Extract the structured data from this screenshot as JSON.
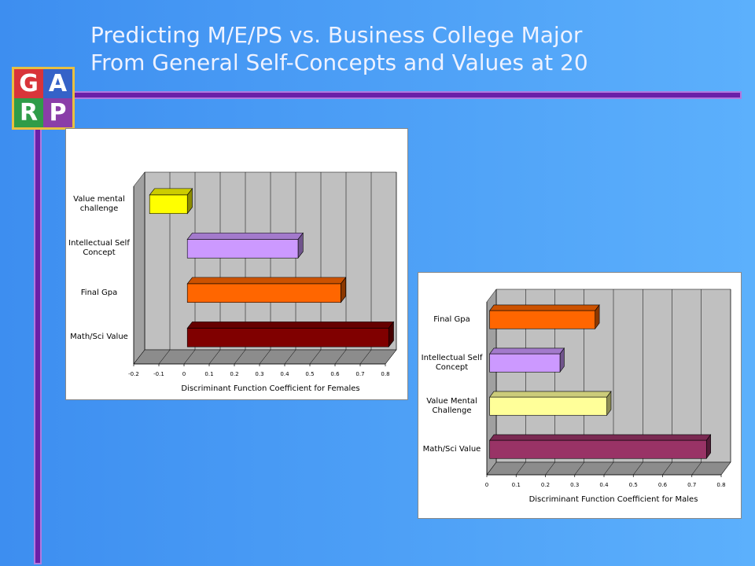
{
  "title": [
    "Predicting M/E/PS vs. Business College Major",
    "From General Self-Concepts and Values at 20"
  ],
  "logo": [
    "G",
    "A",
    "R",
    "P"
  ],
  "chart_data": [
    {
      "type": "bar",
      "orientation": "horizontal",
      "categories": [
        "Value mental challenge",
        "Intellectual Self Concept",
        "Final Gpa",
        "Math/Sci Value"
      ],
      "values": [
        -0.15,
        0.44,
        0.61,
        0.8
      ],
      "colors": [
        "#ffff00",
        "#cc99ff",
        "#ff6600",
        "#800000"
      ],
      "xlabel": "Discriminant Function Coefficient for Females",
      "xlim": [
        -0.2,
        0.8
      ],
      "xticks": [
        -0.2,
        -0.1,
        0,
        0.1,
        0.2,
        0.3,
        0.4,
        0.5,
        0.6,
        0.7,
        0.8
      ],
      "grid": true
    },
    {
      "type": "bar",
      "orientation": "horizontal",
      "categories": [
        "Final Gpa",
        "Intellectual Self Concept",
        "Value Mental Challenge",
        "Math/Sci Value"
      ],
      "values": [
        0.36,
        0.24,
        0.4,
        0.74
      ],
      "colors": [
        "#ff6600",
        "#cc99ff",
        "#ffff99",
        "#993366"
      ],
      "xlabel": "Discriminant Function Coefficient for Males",
      "xlim": [
        0,
        0.8
      ],
      "xticks": [
        0,
        0.1,
        0.2,
        0.3,
        0.4,
        0.5,
        0.6,
        0.7,
        0.8
      ],
      "grid": true
    }
  ]
}
